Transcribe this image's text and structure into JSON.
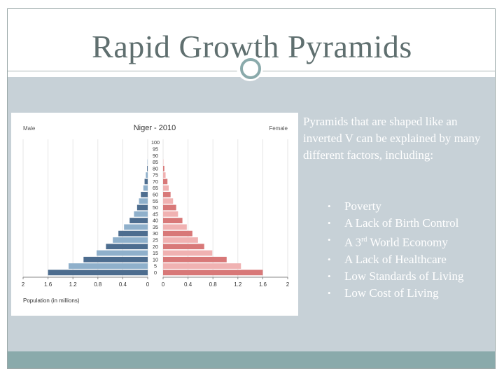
{
  "slide": {
    "title": "Rapid Growth Pyramids",
    "intro": "Pyramids that are shaped like an inverted V can be explained by many different factors, including:",
    "bullets": [
      {
        "text": "Poverty"
      },
      {
        "text": "A Lack of Birth Control"
      },
      {
        "pre": "A 3",
        "sup": "rd",
        "post": " World Economy"
      },
      {
        "text": "A Lack of Healthcare"
      },
      {
        "text": "Low Standards of Living"
      },
      {
        "text": "Low Cost of Living"
      }
    ],
    "bullet_glyph": "•",
    "colors": {
      "accent": "#8aaaab",
      "content_bg": "#c7d1d7",
      "title": "#5f6f6f"
    }
  },
  "chart_data": {
    "type": "bar",
    "orientation": "horizontal-population-pyramid",
    "title": "Niger - 2010",
    "left_label": "Male",
    "right_label": "Female",
    "xlabel": "Population (in millions)",
    "xlim": [
      -2,
      2
    ],
    "x_ticks": [
      "2",
      "1.6",
      "1.2",
      "0.8",
      "0.4",
      "0",
      "0",
      "0.4",
      "0.8",
      "1.2",
      "1.6",
      "2"
    ],
    "x_tick_values": [
      -2,
      -1.6,
      -1.2,
      -0.8,
      -0.4,
      0,
      0,
      0.4,
      0.8,
      1.2,
      1.6,
      2
    ],
    "categories": [
      "0",
      "5",
      "10",
      "15",
      "20",
      "25",
      "30",
      "35",
      "40",
      "45",
      "50",
      "55",
      "60",
      "65",
      "70",
      "75",
      "80",
      "85",
      "90",
      "95",
      "100"
    ],
    "series": [
      {
        "name": "Male",
        "values": [
          1.6,
          1.27,
          1.03,
          0.82,
          0.67,
          0.56,
          0.47,
          0.38,
          0.29,
          0.22,
          0.17,
          0.14,
          0.11,
          0.07,
          0.05,
          0.03,
          0.01,
          0.005,
          0,
          0,
          0
        ],
        "color_light": "#8fb0cb",
        "color_dark": "#4d6d8f"
      },
      {
        "name": "Female",
        "values": [
          1.6,
          1.25,
          1.02,
          0.79,
          0.66,
          0.56,
          0.47,
          0.38,
          0.31,
          0.24,
          0.21,
          0.16,
          0.12,
          0.09,
          0.07,
          0.04,
          0.02,
          0.005,
          0,
          0,
          0
        ],
        "color_light": "#f0b2b2",
        "color_dark": "#d87878"
      }
    ]
  }
}
